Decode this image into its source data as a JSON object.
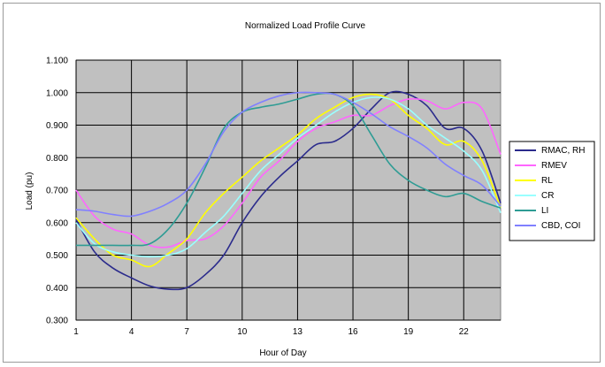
{
  "chart_data": {
    "type": "line",
    "title": "Normalized Load Profile Curve",
    "xlabel": "Hour of Day",
    "ylabel": "Load (pu)",
    "xlim": [
      1,
      24
    ],
    "ylim": [
      0.3,
      1.1
    ],
    "x_ticks": [
      1,
      4,
      7,
      10,
      13,
      16,
      19,
      22
    ],
    "y_ticks": [
      "0.300",
      "0.400",
      "0.500",
      "0.600",
      "0.700",
      "0.800",
      "0.900",
      "1.000",
      "1.100"
    ],
    "grid": true,
    "plot_background": "#c0c0c0",
    "legend_position": "right",
    "x": [
      1,
      2,
      3,
      4,
      5,
      6,
      7,
      8,
      9,
      10,
      11,
      12,
      13,
      14,
      15,
      16,
      17,
      18,
      19,
      20,
      21,
      22,
      23,
      24
    ],
    "series": [
      {
        "name": "RMAC, RH",
        "color": "#2b2b8c",
        "values": [
          0.61,
          0.51,
          0.46,
          0.43,
          0.405,
          0.395,
          0.4,
          0.44,
          0.5,
          0.6,
          0.68,
          0.74,
          0.79,
          0.84,
          0.85,
          0.89,
          0.95,
          1.0,
          0.995,
          0.96,
          0.89,
          0.89,
          0.82,
          0.66
        ]
      },
      {
        "name": "RMEV",
        "color": "#ff66ff",
        "values": [
          0.7,
          0.62,
          0.58,
          0.565,
          0.53,
          0.525,
          0.545,
          0.55,
          0.59,
          0.66,
          0.74,
          0.79,
          0.85,
          0.89,
          0.91,
          0.93,
          0.93,
          0.96,
          0.98,
          0.975,
          0.95,
          0.97,
          0.95,
          0.81
        ]
      },
      {
        "name": "RL",
        "color": "#ffff00",
        "values": [
          0.615,
          0.55,
          0.5,
          0.485,
          0.465,
          0.505,
          0.55,
          0.63,
          0.69,
          0.74,
          0.79,
          0.83,
          0.87,
          0.92,
          0.955,
          0.985,
          0.995,
          0.98,
          0.93,
          0.89,
          0.84,
          0.85,
          0.79,
          0.645
        ]
      },
      {
        "name": "CR",
        "color": "#99ffff",
        "values": [
          0.6,
          0.535,
          0.51,
          0.5,
          0.495,
          0.5,
          0.52,
          0.57,
          0.62,
          0.69,
          0.76,
          0.81,
          0.86,
          0.9,
          0.94,
          0.97,
          0.985,
          0.98,
          0.95,
          0.9,
          0.86,
          0.82,
          0.76,
          0.63
        ]
      },
      {
        "name": "LI",
        "color": "#2e9c94",
        "values": [
          0.53,
          0.53,
          0.53,
          0.53,
          0.535,
          0.58,
          0.66,
          0.77,
          0.89,
          0.94,
          0.955,
          0.965,
          0.98,
          0.995,
          0.995,
          0.96,
          0.87,
          0.78,
          0.73,
          0.7,
          0.68,
          0.69,
          0.665,
          0.645
        ]
      },
      {
        "name": "CBD, COI",
        "color": "#8080ff",
        "values": [
          0.64,
          0.635,
          0.625,
          0.62,
          0.635,
          0.66,
          0.7,
          0.78,
          0.88,
          0.94,
          0.97,
          0.99,
          1.0,
          1.0,
          0.995,
          0.97,
          0.935,
          0.895,
          0.865,
          0.83,
          0.78,
          0.745,
          0.715,
          0.65
        ]
      }
    ]
  }
}
